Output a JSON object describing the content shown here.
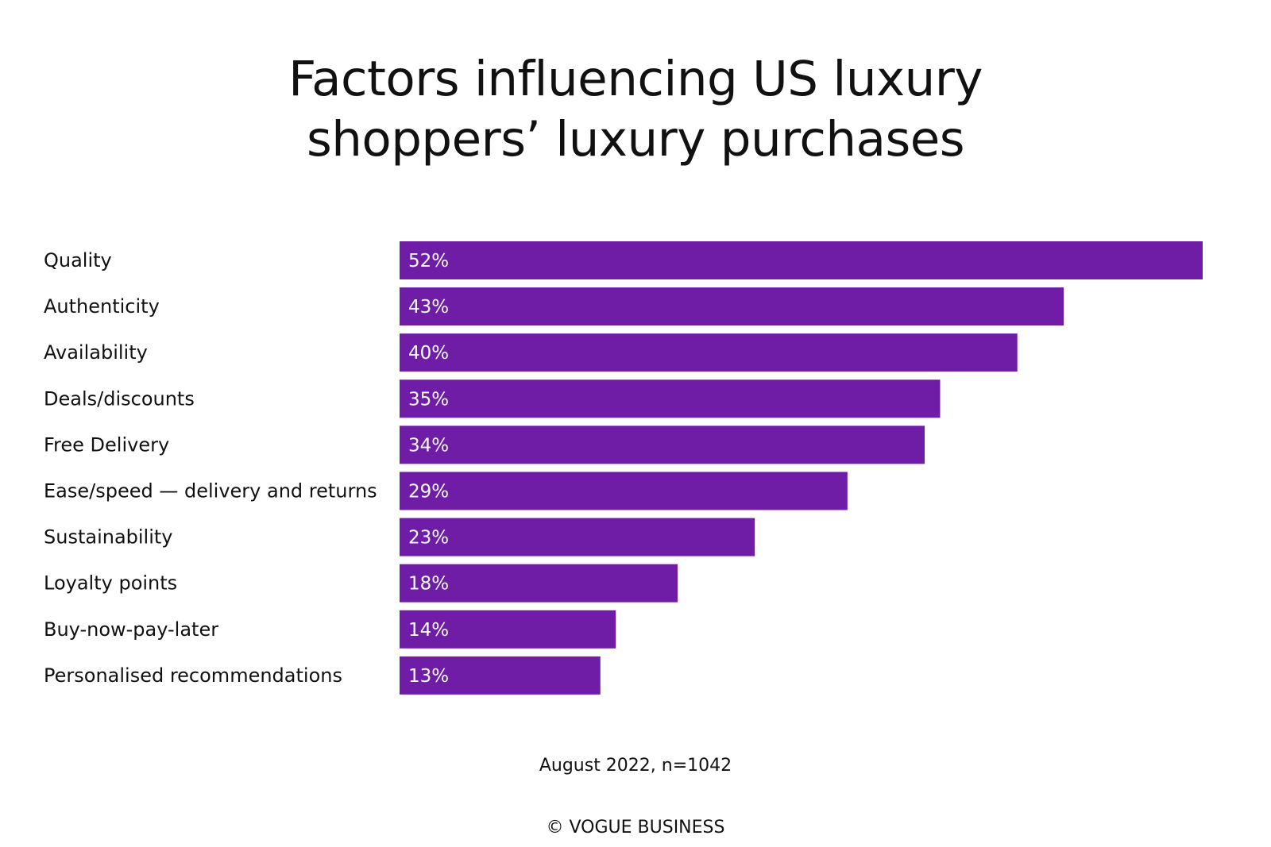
{
  "title_line1": "Factors influencing US luxury",
  "title_line2": "shoppers’ luxury purchases",
  "note": "August 2022, n=1042",
  "credit": "© VOGUE BUSINESS",
  "bar_color": "#6f1ca7",
  "chart_data": {
    "type": "bar",
    "orientation": "horizontal",
    "title": "Factors influencing US luxury shoppers’ luxury purchases",
    "categories": [
      "Quality",
      "Authenticity",
      "Availability",
      "Deals/discounts",
      "Free Delivery",
      "Ease/speed — delivery and returns",
      "Sustainability",
      "Loyalty points",
      "Buy-now-pay-later",
      "Personalised recommendations"
    ],
    "values": [
      52,
      43,
      40,
      35,
      34,
      29,
      23,
      18,
      14,
      13
    ],
    "value_labels": [
      "52%",
      "43%",
      "40%",
      "35%",
      "34%",
      "29%",
      "23%",
      "18%",
      "14%",
      "13%"
    ],
    "unit": "%",
    "xlim": [
      0,
      52
    ],
    "grid": false,
    "legend": "none"
  }
}
